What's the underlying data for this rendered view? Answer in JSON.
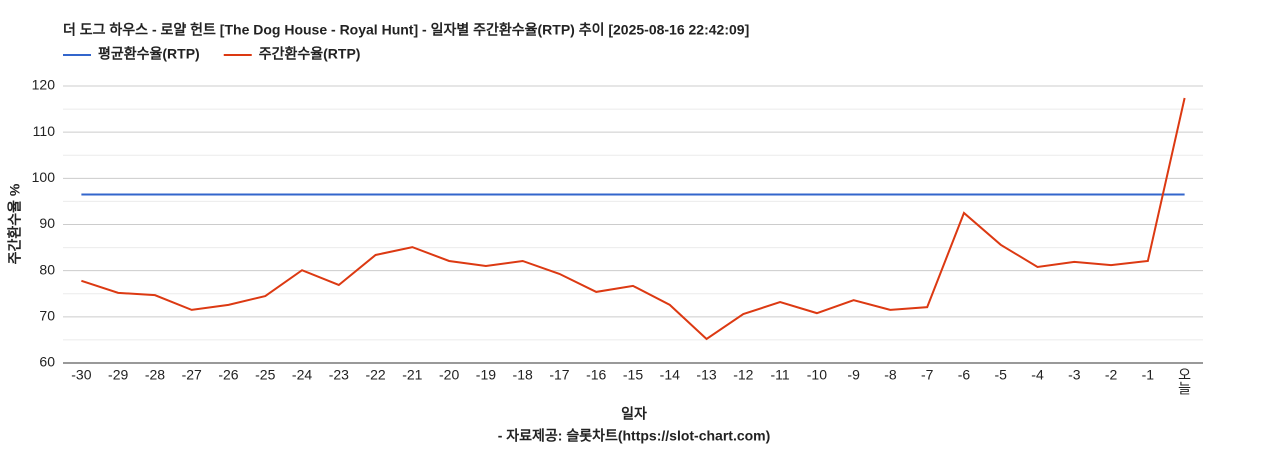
{
  "chart_data": {
    "type": "line",
    "title": "더 도그 하우스 - 로얄 헌트 [The Dog House - Royal Hunt] - 일자별 주간환수율(RTP) 추이 [2025-08-16 22:42:09]",
    "x_label": "일자",
    "y_label": "주간환수율 %",
    "source": "- 자료제공: 슬롯차트(https://slot-chart.com)",
    "categories": [
      "-30",
      "-29",
      "-28",
      "-27",
      "-26",
      "-25",
      "-24",
      "-23",
      "-22",
      "-21",
      "-20",
      "-19",
      "-18",
      "-17",
      "-16",
      "-15",
      "-14",
      "-13",
      "-12",
      "-11",
      "-10",
      "-9",
      "-8",
      "-7",
      "-6",
      "-5",
      "-4",
      "-3",
      "-2",
      "-1",
      "오늘"
    ],
    "series": [
      {
        "name": "평균환수율(RTP)",
        "color": "#3366cc",
        "values": [
          96.5,
          96.5,
          96.5,
          96.5,
          96.5,
          96.5,
          96.5,
          96.5,
          96.5,
          96.5,
          96.5,
          96.5,
          96.5,
          96.5,
          96.5,
          96.5,
          96.5,
          96.5,
          96.5,
          96.5,
          96.5,
          96.5,
          96.5,
          96.5,
          96.5,
          96.5,
          96.5,
          96.5,
          96.5,
          96.5,
          96.5
        ]
      },
      {
        "name": "주간환수율(RTP)",
        "color": "#dc3912",
        "values": [
          77.8,
          75.2,
          74.7,
          71.5,
          72.6,
          74.5,
          80.1,
          76.9,
          83.4,
          85.1,
          82.1,
          81.0,
          82.1,
          79.3,
          75.4,
          76.7,
          72.6,
          65.2,
          70.6,
          73.2,
          70.8,
          73.6,
          71.5,
          72.1,
          92.5,
          85.6,
          80.8,
          81.9,
          81.2,
          82.1,
          117.4
        ]
      }
    ],
    "ylim": [
      60,
      120
    ],
    "yticks": [
      60,
      70,
      80,
      90,
      100,
      110,
      120
    ],
    "minor_yticks": [
      65,
      75,
      85,
      95,
      105,
      115
    ],
    "grid": true,
    "legend": "top-left"
  }
}
